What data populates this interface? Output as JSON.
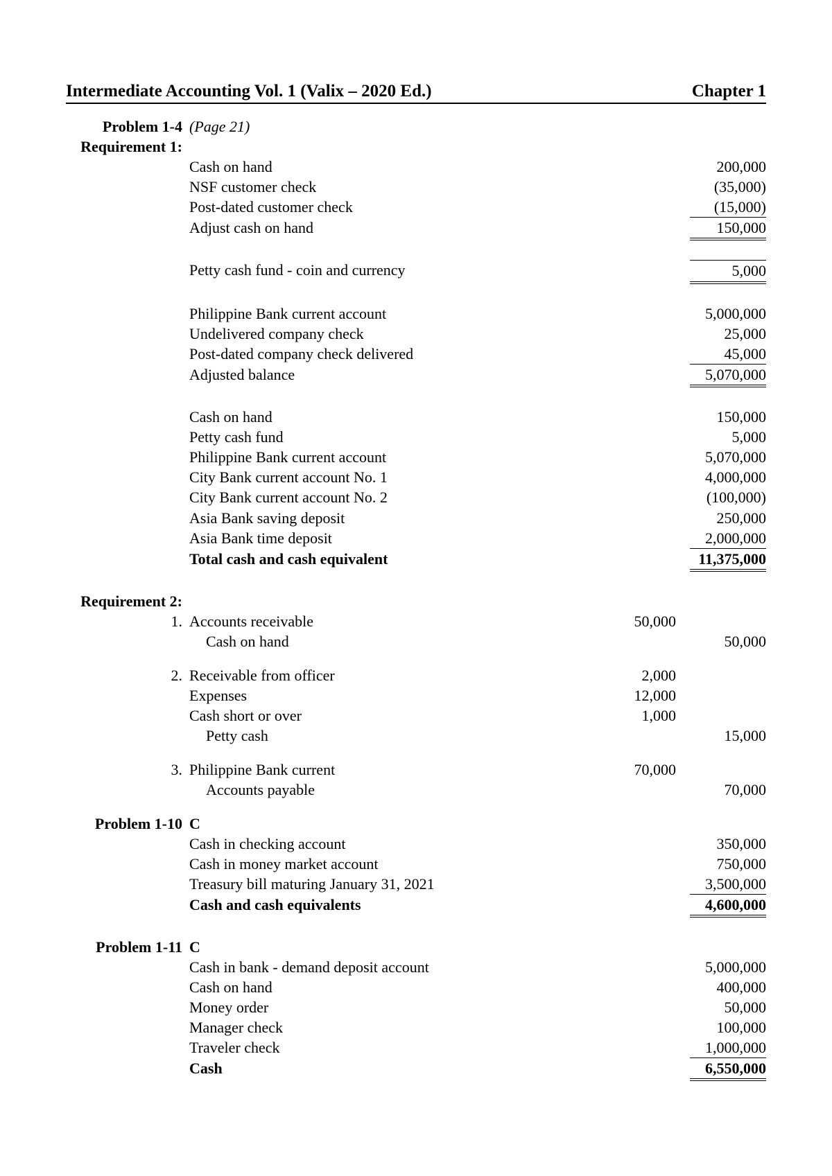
{
  "header": {
    "title": "Intermediate Accounting Vol. 1 (Valix – 2020 Ed.)",
    "chapter": "Chapter 1"
  },
  "p14": {
    "label": "Problem 1-4",
    "page": "(Page 21)",
    "req1_label": "Requirement 1:",
    "block1": [
      {
        "desc": "Cash on hand",
        "val": "200,000",
        "style": ""
      },
      {
        "desc": "NSF customer check",
        "val": "(35,000)",
        "style": ""
      },
      {
        "desc": "Post-dated customer check",
        "val": "(15,000)",
        "style": "ul-single"
      },
      {
        "desc": "Adjust cash on hand",
        "val": "150,000",
        "style": "ul-double-only"
      }
    ],
    "block2": [
      {
        "desc": "Petty cash fund - coin and currency",
        "val": "5,000",
        "style": "ul-top-single-bottom-double"
      }
    ],
    "block3": [
      {
        "desc": "Philippine Bank current account",
        "val": "5,000,000",
        "style": ""
      },
      {
        "desc": "Undelivered company check",
        "val": "25,000",
        "style": ""
      },
      {
        "desc": "Post-dated company check delivered",
        "val": "45,000",
        "style": "ul-single"
      },
      {
        "desc": "Adjusted balance",
        "val": "5,070,000",
        "style": "ul-double-only"
      }
    ],
    "block4": [
      {
        "desc": "Cash on hand",
        "val": "150,000",
        "style": ""
      },
      {
        "desc": "Petty cash fund",
        "val": "5,000",
        "style": ""
      },
      {
        "desc": "Philippine Bank current account",
        "val": "5,070,000",
        "style": ""
      },
      {
        "desc": "City Bank current account No. 1",
        "val": "4,000,000",
        "style": ""
      },
      {
        "desc": "City Bank current account No. 2",
        "val": "(100,000)",
        "style": ""
      },
      {
        "desc": "Asia Bank saving deposit",
        "val": "250,000",
        "style": ""
      },
      {
        "desc": "Asia Bank time deposit",
        "val": "2,000,000",
        "style": "ul-single"
      },
      {
        "desc": "Total cash and cash equivalent",
        "val": "11,375,000",
        "style": "ul-double-only",
        "bold": true
      }
    ],
    "req2_label": "Requirement 2:",
    "je1_num": "1.",
    "je1": [
      {
        "desc": "Accounts receivable",
        "dr": "50,000",
        "cr": ""
      },
      {
        "desc": "Cash on hand",
        "indent": 1,
        "dr": "",
        "cr": "50,000"
      }
    ],
    "je2_num": "2.",
    "je2": [
      {
        "desc": "Receivable from officer",
        "dr": "2,000",
        "cr": ""
      },
      {
        "desc": "Expenses",
        "dr": "12,000",
        "cr": ""
      },
      {
        "desc": "Cash short or over",
        "dr": "1,000",
        "cr": ""
      },
      {
        "desc": "Petty cash",
        "indent": 1,
        "dr": "",
        "cr": "15,000"
      }
    ],
    "je3_num": "3.",
    "je3": [
      {
        "desc": "Philippine Bank current",
        "dr": "70,000",
        "cr": ""
      },
      {
        "desc": "Accounts payable",
        "indent": 1,
        "dr": "",
        "cr": "70,000"
      }
    ]
  },
  "p110": {
    "label": "Problem 1-10",
    "answer": "C",
    "rows": [
      {
        "desc": "Cash in checking account",
        "val": "350,000",
        "style": ""
      },
      {
        "desc": "Cash in money market account",
        "val": "750,000",
        "style": ""
      },
      {
        "desc": "Treasury bill maturing January 31, 2021",
        "val": "3,500,000",
        "style": "ul-single"
      },
      {
        "desc": "Cash and cash equivalents",
        "val": "4,600,000",
        "style": "ul-double-only",
        "bold": true
      }
    ]
  },
  "p111": {
    "label": "Problem 1-11",
    "answer": "C",
    "rows": [
      {
        "desc": "Cash in bank - demand deposit account",
        "val": "5,000,000",
        "style": ""
      },
      {
        "desc": "Cash on hand",
        "val": "400,000",
        "style": ""
      },
      {
        "desc": "Money order",
        "val": "50,000",
        "style": ""
      },
      {
        "desc": "Manager check",
        "val": "100,000",
        "style": ""
      },
      {
        "desc": "Traveler check",
        "val": "1,000,000",
        "style": "ul-single"
      },
      {
        "desc": "Cash",
        "val": "6,550,000",
        "style": "ul-double-only",
        "bold": true
      }
    ]
  }
}
